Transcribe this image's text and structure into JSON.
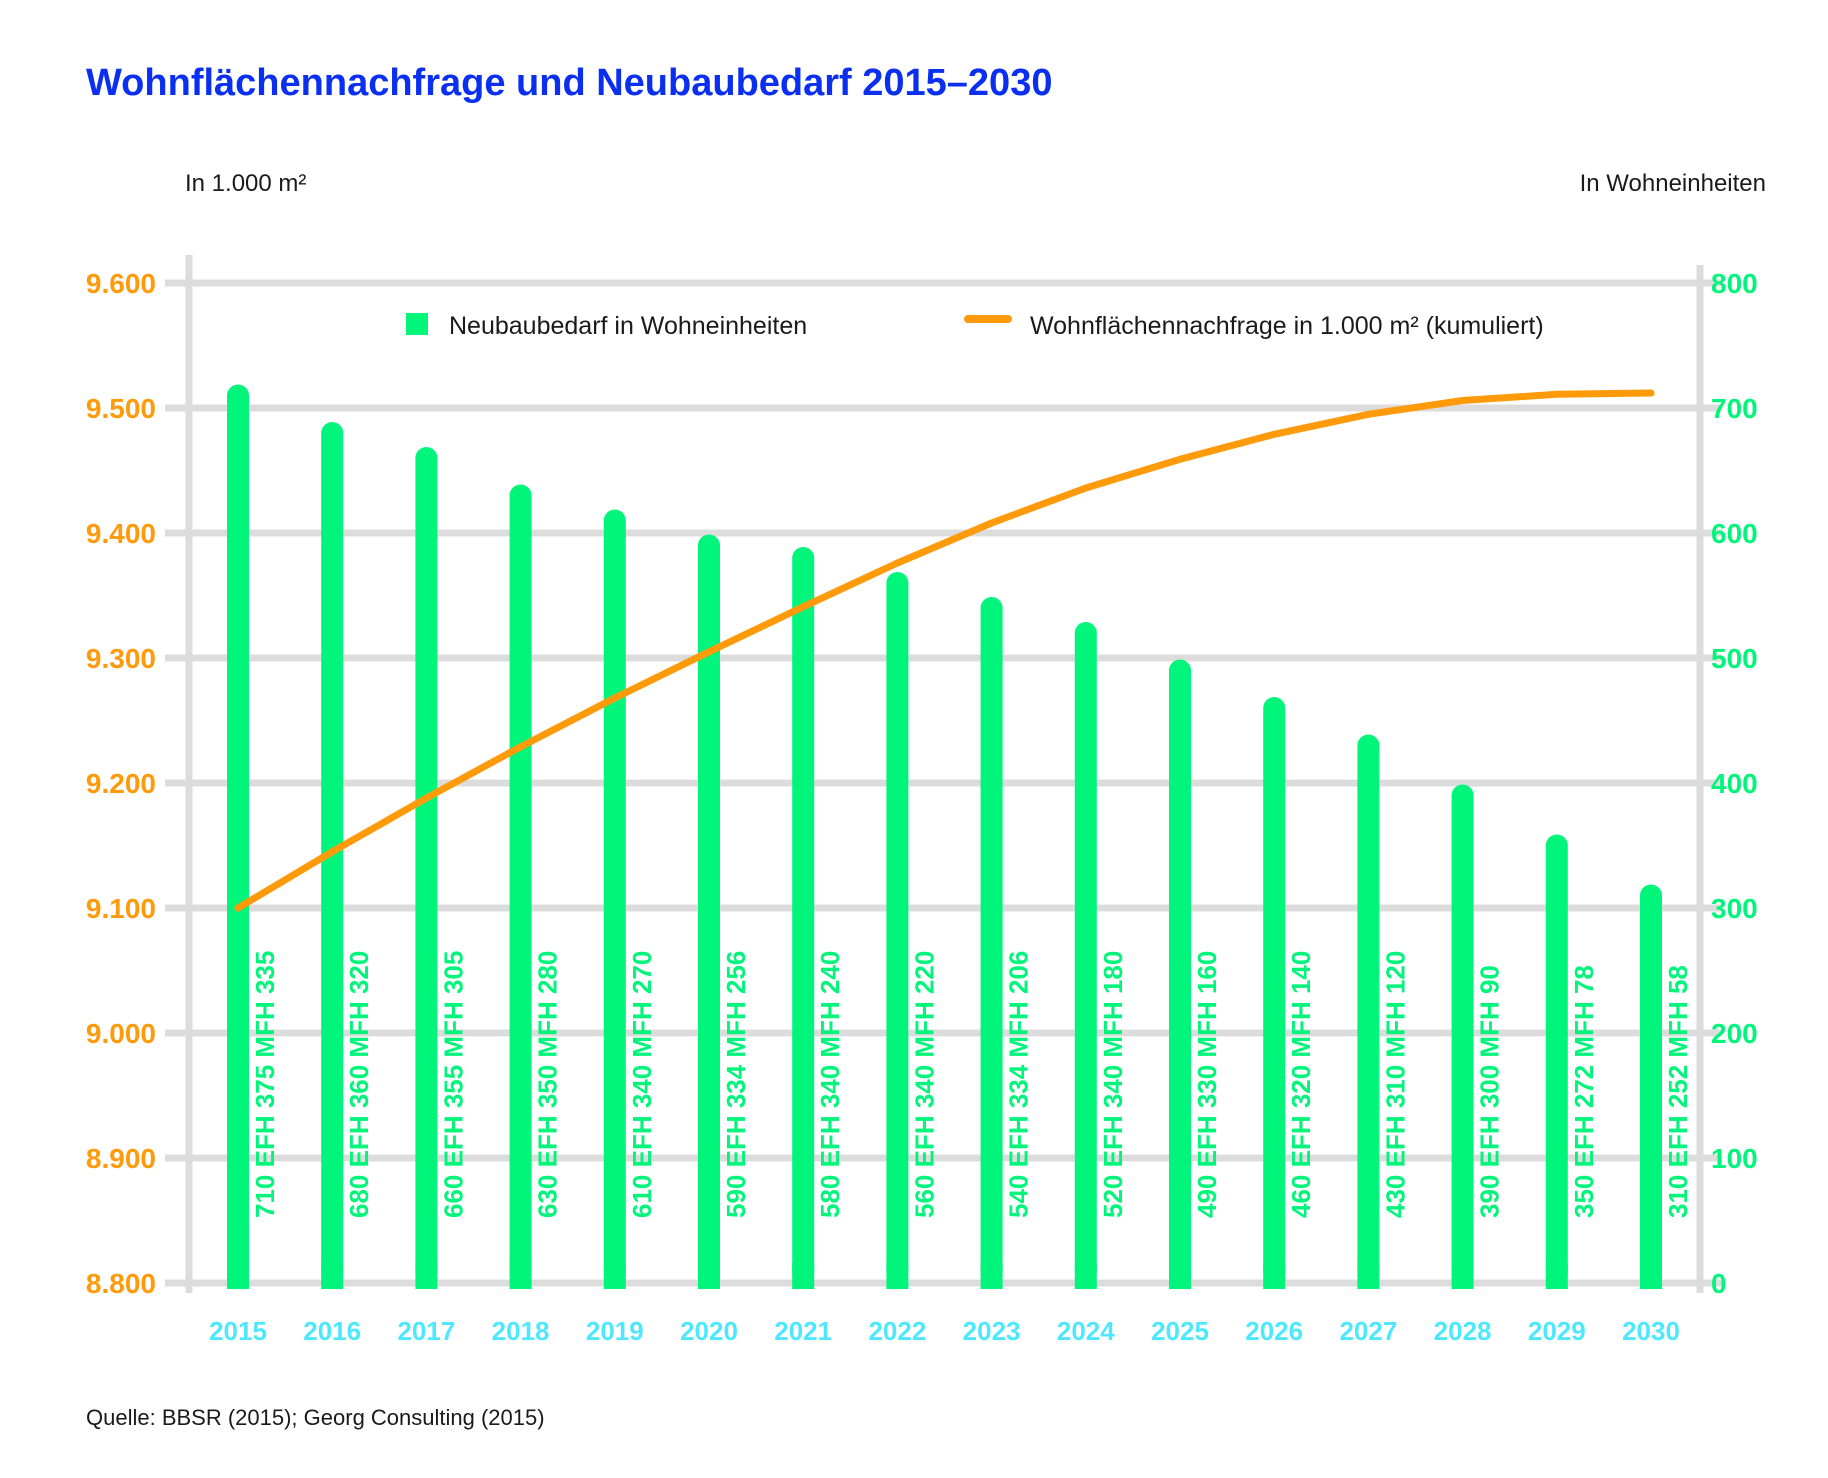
{
  "title": "Wohnflächennachfrage und Neubaubedarf 2015–2030",
  "left_unit": "In 1.000 m²",
  "right_unit": "In Wohneinheiten",
  "source": "Quelle: BBSR (2015); Georg Consulting (2015)",
  "colors": {
    "title": "#0a2ff0",
    "bar": "#00f57a",
    "line": "#ff9a0a",
    "left_axis": "#ff9a0a",
    "right_axis": "#00f57a",
    "x_axis": "#4de8ff",
    "grid": "#dcdcdc"
  },
  "chart_data": {
    "type": "bar",
    "categories": [
      "2015",
      "2016",
      "2017",
      "2018",
      "2019",
      "2020",
      "2021",
      "2022",
      "2023",
      "2024",
      "2025",
      "2026",
      "2027",
      "2028",
      "2029",
      "2030"
    ],
    "legend_placement": "top",
    "grid": true,
    "y_left": {
      "label": "In 1.000 m²",
      "ylim": [
        8800,
        9600
      ],
      "ticks": [
        "8.800",
        "8.900",
        "9.000",
        "9.100",
        "9.200",
        "9.300",
        "9.400",
        "9.500",
        "9.600"
      ]
    },
    "y_right": {
      "label": "In Wohneinheiten",
      "ylim": [
        0,
        800
      ],
      "ticks": [
        "0",
        "100",
        "200",
        "300",
        "400",
        "500",
        "600",
        "700",
        "800"
      ]
    },
    "series": [
      {
        "name": "Neubaubedarf in Wohneinheiten",
        "type": "bar",
        "axis": "right",
        "values": [
          710,
          680,
          660,
          630,
          610,
          590,
          580,
          560,
          540,
          520,
          490,
          460,
          430,
          390,
          350,
          310
        ],
        "labels": [
          "710 EFH 375 MFH 335",
          "680 EFH 360 MFH 320",
          "660 EFH 355 MFH 305",
          "630 EFH 350 MFH 280",
          "610 EFH 340 MFH 270",
          "590 EFH 334 MFH 256",
          "580 EFH 340 MFH 240",
          "560 EFH 340 MFH 220",
          "540 EFH 334 MFH 206",
          "520 EFH 340 MFH 180",
          "490 EFH 330 MFH 160",
          "460 EFH 320 MFH 140",
          "430 EFH 310 MFH 120",
          "390 EFH 300 MFH 90",
          "350 EFH 272 MFH 78",
          "310 EFH 252 MFH 58"
        ]
      },
      {
        "name": "Wohnflächennachfrage in 1.000 m² (kumuliert)",
        "type": "line",
        "axis": "left",
        "values": [
          9100,
          9145,
          9188,
          9229,
          9268,
          9305,
          9341,
          9376,
          9408,
          9436,
          9459,
          9479,
          9495,
          9506,
          9511,
          9512
        ]
      }
    ]
  }
}
